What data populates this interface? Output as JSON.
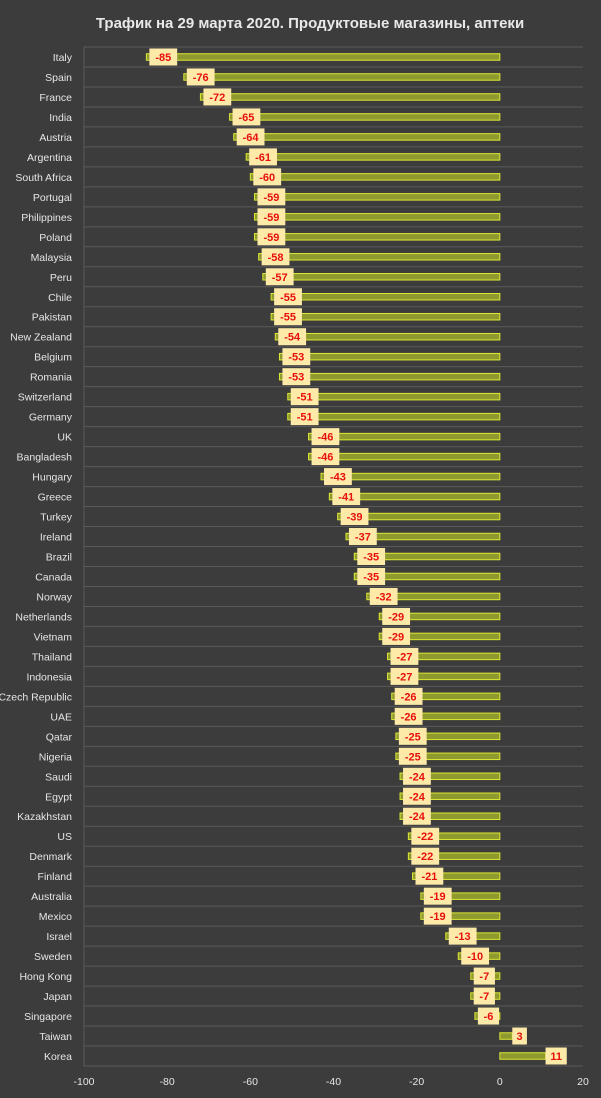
{
  "chart_data": {
    "type": "bar",
    "orientation": "horizontal",
    "title": "Трафик на 29 марта 2020. Продуктовые магазины, аптеки",
    "xlabel": "",
    "ylabel": "",
    "xlim": [
      -100,
      20
    ],
    "xticks": [
      -100,
      -80,
      -60,
      -40,
      -20,
      0,
      20
    ],
    "grid": true,
    "categories": [
      "Italy",
      "Spain",
      "France",
      "India",
      "Austria",
      "Argentina",
      "South Africa",
      "Portugal",
      "Philippines",
      "Poland",
      "Malaysia",
      "Peru",
      "Chile",
      "Pakistan",
      "New Zealand",
      "Belgium",
      "Romania",
      "Switzerland",
      "Germany",
      "UK",
      "Bangladesh",
      "Hungary",
      "Greece",
      "Turkey",
      "Ireland",
      "Brazil",
      "Canada",
      "Norway",
      "Netherlands",
      "Vietnam",
      "Thailand",
      "Indonesia",
      "Czech Republic",
      "UAE",
      "Qatar",
      "Nigeria",
      "Saudi",
      "Egypt",
      "Kazakhstan",
      "US",
      "Denmark",
      "Finland",
      "Australia",
      "Mexico",
      "Israel",
      "Sweden",
      "Hong Kong",
      "Japan",
      "Singapore",
      "Taiwan",
      "Korea"
    ],
    "values": [
      -85,
      -76,
      -72,
      -65,
      -64,
      -61,
      -60,
      -59,
      -59,
      -59,
      -58,
      -57,
      -55,
      -55,
      -54,
      -53,
      -53,
      -51,
      -51,
      -46,
      -46,
      -43,
      -41,
      -39,
      -37,
      -35,
      -35,
      -32,
      -29,
      -29,
      -27,
      -27,
      -26,
      -26,
      -25,
      -25,
      -24,
      -24,
      -24,
      -22,
      -22,
      -21,
      -19,
      -19,
      -13,
      -10,
      -7,
      -7,
      -6,
      3,
      11
    ]
  },
  "colors": {
    "background": "#3c3c3c",
    "bar_fill": "#8e9a2e",
    "bar_stroke": "#dde836",
    "label_box": "#fde9a8",
    "label_text": "#e8100c",
    "grid": "#5a5a5a",
    "text": "#e6e6e6"
  }
}
